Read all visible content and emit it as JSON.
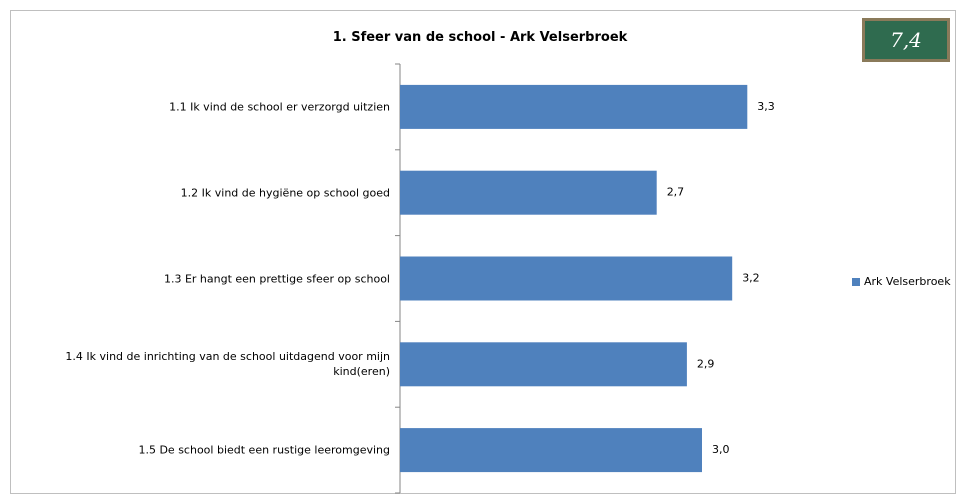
{
  "badge": "7,4",
  "chart_data": {
    "type": "bar",
    "orientation": "horizontal",
    "title": "1. Sfeer van de school - Ark Velserbroek",
    "categories": [
      "1.1 Ik vind de school er verzorgd uitzien",
      "1.2 Ik vind de hygiëne op school goed",
      "1.3 Er hangt een prettige sfeer op school",
      "1.4 Ik vind de inrichting van de school uitdagend voor mijn kind(eren)",
      "1.5 De school biedt een rustige leeromgeving"
    ],
    "series": [
      {
        "name": "Ark Velserbroek",
        "color": "#4f81bd",
        "values": [
          3.3,
          2.7,
          3.2,
          2.9,
          3.0
        ],
        "value_labels": [
          "3,3",
          "2,7",
          "3,2",
          "2,9",
          "3,0"
        ]
      }
    ],
    "xlim": [
      1,
      4
    ],
    "legend": "right"
  }
}
